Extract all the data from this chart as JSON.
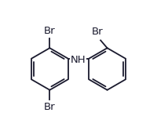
{
  "bond_color": "#1a1a2e",
  "label_color": "#1a1a2e",
  "bg_color": "#ffffff",
  "figsize": [
    2.14,
    1.76
  ],
  "dpi": 100,
  "font_size": 9.5,
  "nh_label": "NH",
  "br_labels": [
    "Br",
    "Br",
    "Br"
  ],
  "line_width": 1.3
}
